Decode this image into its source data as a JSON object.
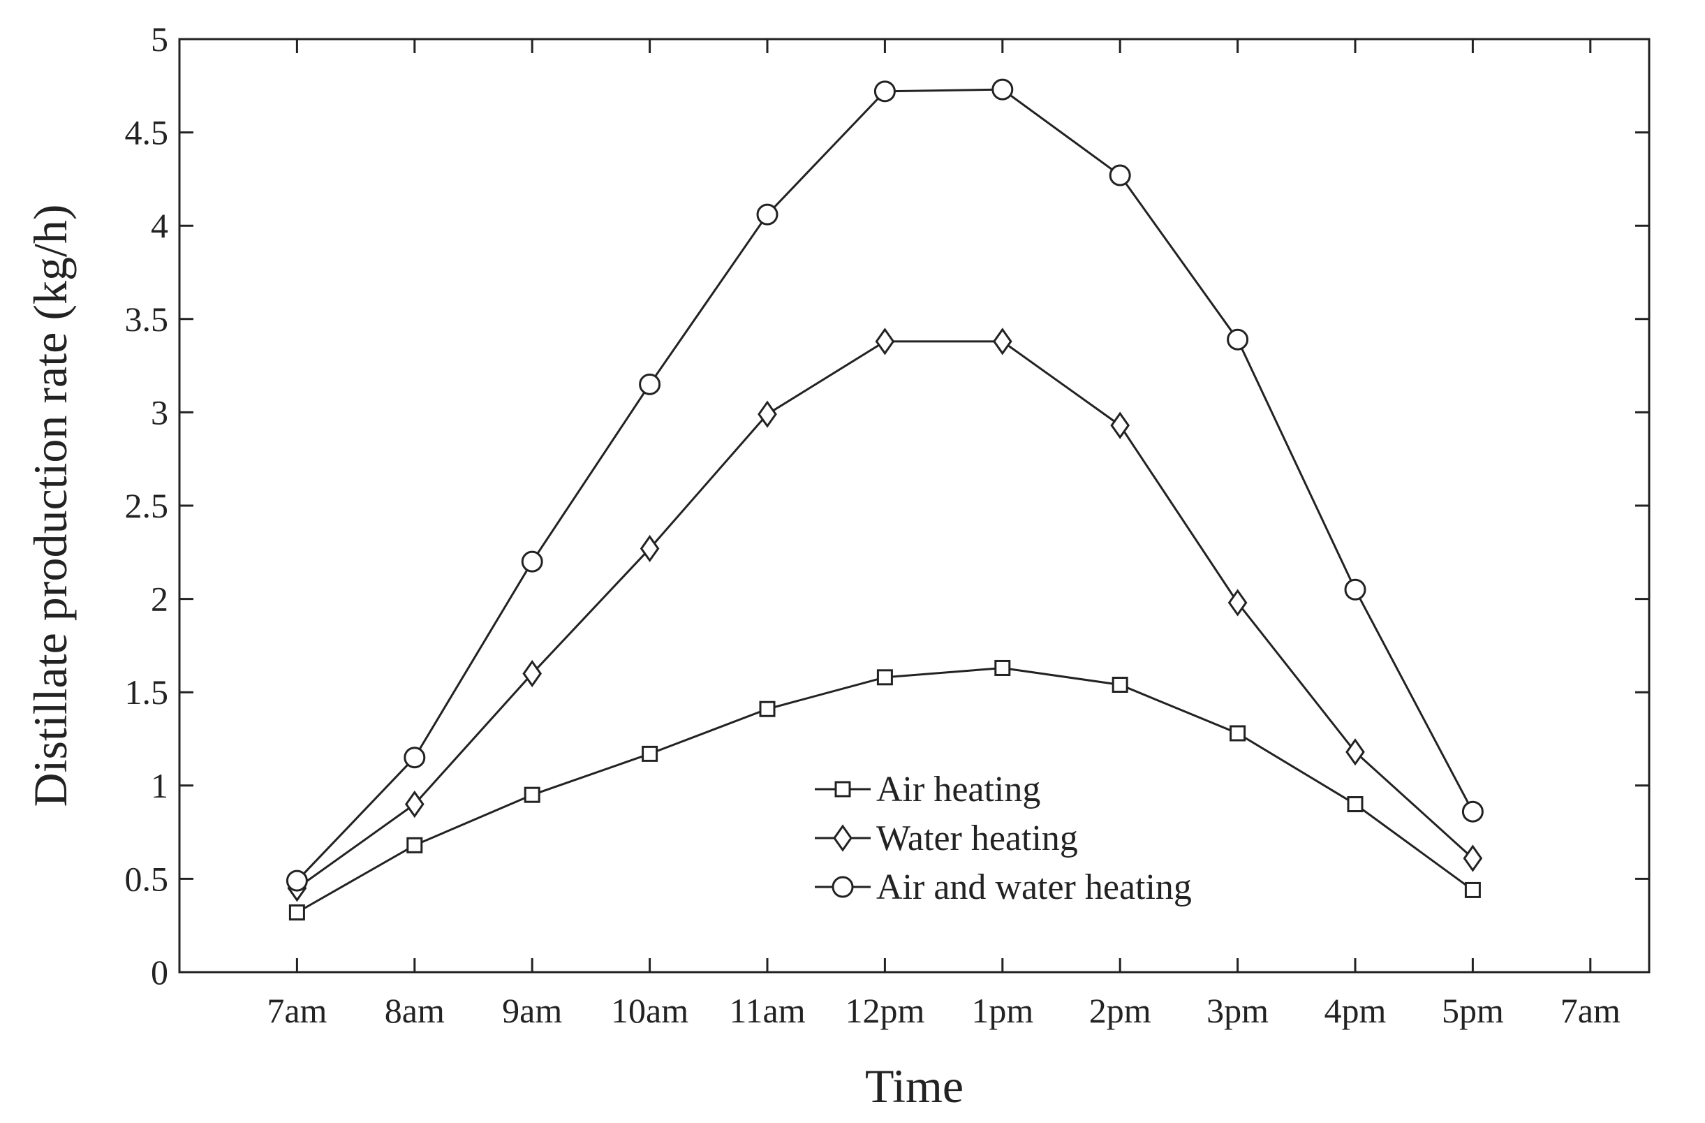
{
  "chart_data": {
    "type": "line",
    "title": "",
    "xlabel": "Time",
    "ylabel": "Distillate production rate (kg/h)",
    "x_tick_labels": [
      "7am",
      "8am",
      "9am",
      "10am",
      "11am",
      "12pm",
      "1pm",
      "2pm",
      "3pm",
      "4pm",
      "5pm",
      "7am"
    ],
    "categories": [
      "7am",
      "8am",
      "9am",
      "10am",
      "11am",
      "12pm",
      "1pm",
      "2pm",
      "3pm",
      "4pm",
      "5pm"
    ],
    "y_ticks": [
      "0",
      "0.5",
      "1",
      "1.5",
      "2",
      "2.5",
      "3",
      "3.5",
      "4",
      "4.5",
      "5"
    ],
    "ylim": [
      0,
      5
    ],
    "grid": false,
    "legend_position": "bottom-center",
    "series": [
      {
        "name": "Air heating",
        "marker": "square",
        "values": [
          0.32,
          0.68,
          0.95,
          1.17,
          1.41,
          1.58,
          1.63,
          1.54,
          1.28,
          0.9,
          0.44
        ]
      },
      {
        "name": "Water heating",
        "marker": "diamond",
        "values": [
          0.45,
          0.9,
          1.6,
          2.27,
          2.99,
          3.38,
          3.38,
          2.93,
          1.98,
          1.18,
          0.61
        ]
      },
      {
        "name": "Air and water heating",
        "marker": "circle",
        "values": [
          0.49,
          1.15,
          2.2,
          3.15,
          4.06,
          4.72,
          4.73,
          4.27,
          3.39,
          2.05,
          0.86
        ]
      }
    ]
  }
}
